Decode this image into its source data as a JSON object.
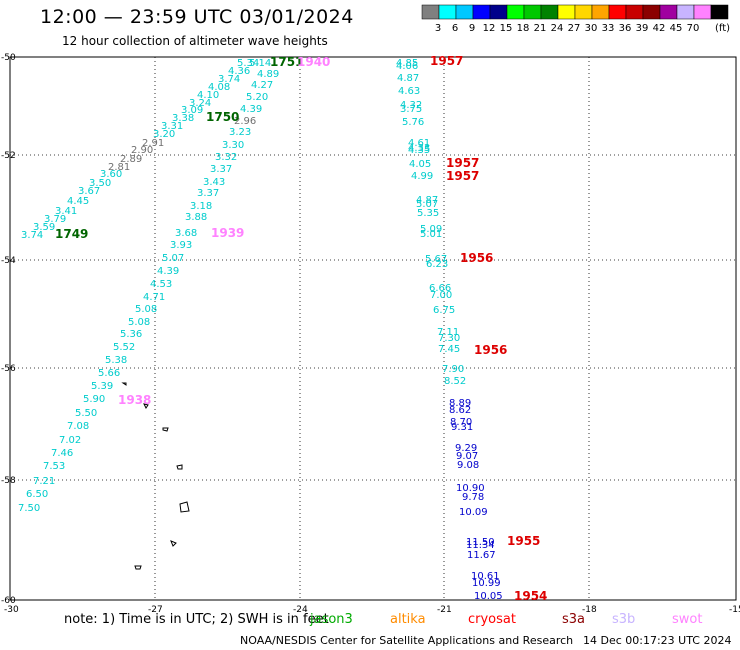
{
  "title": "12:00 — 23:59 UTC 03/01/2024",
  "subtitle": "12 hour collection of altimeter wave heights",
  "legend": {
    "unit": "(ft)",
    "bins": [
      {
        "color": "#808080",
        "label": ""
      },
      {
        "color": "#00ffff",
        "label": "3"
      },
      {
        "color": "#00c8ff",
        "label": "6"
      },
      {
        "color": "#0000ff",
        "label": "9"
      },
      {
        "color": "#00008b",
        "label": "12"
      },
      {
        "color": "#00ff00",
        "label": "15"
      },
      {
        "color": "#00c800",
        "label": "18"
      },
      {
        "color": "#008200",
        "label": "21"
      },
      {
        "color": "#ffff00",
        "label": "24"
      },
      {
        "color": "#ffd700",
        "label": "27"
      },
      {
        "color": "#ffa500",
        "label": "30"
      },
      {
        "color": "#ff0000",
        "label": "33"
      },
      {
        "color": "#c80000",
        "label": "36"
      },
      {
        "color": "#8b0000",
        "label": "39"
      },
      {
        "color": "#a000a0",
        "label": "42"
      },
      {
        "color": "#c8b4ff",
        "label": "45"
      },
      {
        "color": "#ff82ff",
        "label": "70"
      },
      {
        "color": "#000000",
        "label": ""
      }
    ]
  },
  "axes": {
    "lon_ticks": [
      "-30",
      "-27",
      "-24",
      "-21",
      "-18",
      "-15"
    ],
    "lat_ticks": [
      "-50",
      "-52",
      "-54",
      "-56",
      "-58",
      "-60"
    ]
  },
  "tracks": [
    {
      "name": "gray",
      "color": "#707070",
      "labels": [
        "2.81",
        "2.89",
        "2.90",
        "2.91",
        "2.96"
      ]
    },
    {
      "name": "cyan-left",
      "color": "#00cccc",
      "labels": [
        "3.74",
        "3.59",
        "3.79",
        "3.41",
        "4.45",
        "3.67",
        "3.50",
        "3.60",
        "3.20",
        "3.31",
        "3.38",
        "3.09",
        "3.24",
        "4.10",
        "4.08",
        "3.74",
        "4.36",
        "5.34",
        "5.14",
        "4.89",
        "4.27",
        "5.20",
        "4.39",
        "3.23",
        "3.30",
        "3.32",
        "3.37",
        "3.43",
        "3.37",
        "3.18",
        "3.88",
        "3.68",
        "3.93",
        "5.07",
        "4.39",
        "4.53",
        "4.71",
        "5.08",
        "5.08",
        "5.36",
        "5.52",
        "5.38",
        "5.66",
        "5.39",
        "5.90",
        "5.50",
        "7.08",
        "7.02",
        "7.46",
        "7.53",
        "7.21",
        "6.50",
        "7.50"
      ]
    },
    {
      "name": "cyan-right",
      "color": "#00cccc",
      "labels": [
        "4.85",
        "4.06",
        "4.87",
        "4.63",
        "4.32",
        "3.75",
        "5.76",
        "4.61",
        "4.33",
        "4.35",
        "4.05",
        "4.99",
        "4.87",
        "5.07",
        "5.35",
        "5.09",
        "5.01",
        "5.67",
        "6.23",
        "6.66",
        "7.00",
        "6.75",
        "7.11",
        "7.30",
        "7.45",
        "7.90",
        "8.52"
      ]
    },
    {
      "name": "blue-right",
      "color": "#0000cc",
      "labels": [
        "8.89",
        "8.62",
        "8.70",
        "9.31",
        "9.29",
        "9.07",
        "9.08",
        "10.90",
        "9.78",
        "10.09",
        "11.50",
        "11.34",
        "11.67",
        "10.61",
        "10.99",
        "10.05"
      ]
    }
  ],
  "time_labels": [
    {
      "text": "1749",
      "color": "#006400"
    },
    {
      "text": "1750",
      "color": "#006400"
    },
    {
      "text": "1751",
      "color": "#006400"
    },
    {
      "text": "1940",
      "color": "#ff82ff"
    },
    {
      "text": "1939",
      "color": "#ff82ff"
    },
    {
      "text": "1938",
      "color": "#ff82ff"
    },
    {
      "text": "1957",
      "color": "#dd0000"
    },
    {
      "text": "1957",
      "color": "#dd0000"
    },
    {
      "text": "1957",
      "color": "#dd0000"
    },
    {
      "text": "1956",
      "color": "#dd0000"
    },
    {
      "text": "1956",
      "color": "#dd0000"
    },
    {
      "text": "1955",
      "color": "#dd0000"
    },
    {
      "text": "1954",
      "color": "#dd0000"
    }
  ],
  "note": "note:  1) Time is in UTC; 2) SWH is in feet",
  "satellites": [
    {
      "name": "jason3",
      "color": "#00aa00"
    },
    {
      "name": "altika",
      "color": "#ff8c00"
    },
    {
      "name": "cryosat",
      "color": "#ff0000"
    },
    {
      "name": "s3a",
      "color": "#8b0000"
    },
    {
      "name": "s3b",
      "color": "#c8b4ff"
    },
    {
      "name": "swot",
      "color": "#ff82ff"
    }
  ],
  "credit": "NOAA/NESDIS Center for Satellite Applications and Research",
  "created": "14 Dec 00:17:23 UTC 2024"
}
